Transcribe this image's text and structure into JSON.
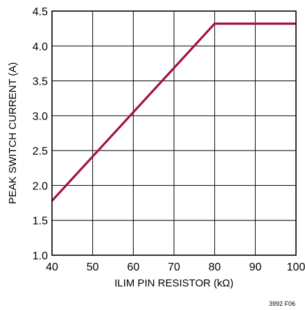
{
  "chart_data": {
    "type": "line",
    "title": "",
    "xlabel": "ILIM PIN RESISTOR (kΩ)",
    "ylabel": "PEAK SWITCH CURRENT (A)",
    "xlim": [
      40,
      100
    ],
    "ylim": [
      1.0,
      4.5
    ],
    "x_ticks": [
      40,
      50,
      60,
      70,
      80,
      90,
      100
    ],
    "x_tick_labels": [
      "40",
      "50",
      "60",
      "70",
      "80",
      "90",
      "100"
    ],
    "y_ticks": [
      1.0,
      1.5,
      2.0,
      2.5,
      3.0,
      3.5,
      4.0,
      4.5
    ],
    "y_tick_labels": [
      "1.0",
      "1.5",
      "2.0",
      "2.5",
      "3.0",
      "3.5",
      "4.0",
      "4.5"
    ],
    "grid": true,
    "series": [
      {
        "color": "#a3123a",
        "x": [
          40,
          80,
          100
        ],
        "y": [
          1.78,
          4.32,
          4.32
        ]
      }
    ],
    "figure_id": "3992 F06"
  }
}
